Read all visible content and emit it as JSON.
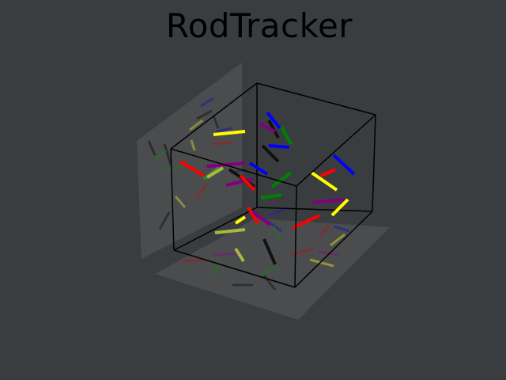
{
  "window": {
    "title": "RodTracker"
  },
  "colors": {
    "background": "#3a3d40",
    "pane": "#4a4c4e",
    "box_edge": "#000000",
    "rod_red": "#ff0000",
    "rod_blue": "#0000ff",
    "rod_green": "#008000",
    "rod_yellow": "#ffff00",
    "rod_purple": "#800080",
    "rod_black": "#000000"
  }
}
